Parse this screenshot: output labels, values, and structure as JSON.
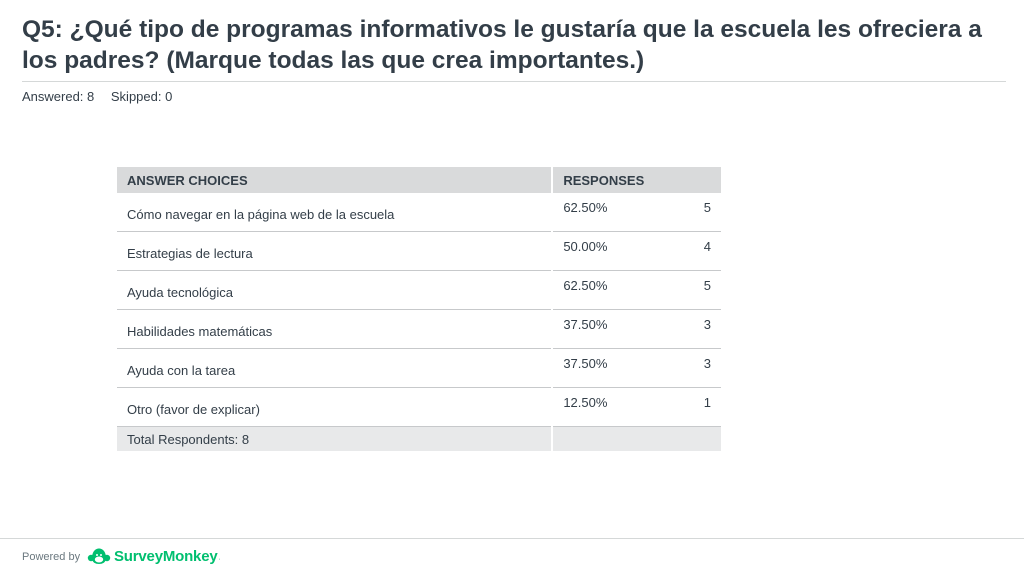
{
  "question": {
    "title": "Q5: ¿Qué tipo de programas informativos le gustaría que la escuela les ofreciera a los padres? (Marque todas las que crea importantes.)",
    "answered": "Answered: 8",
    "skipped": "Skipped: 0"
  },
  "table": {
    "headers": {
      "choices": "ANSWER CHOICES",
      "responses": "RESPONSES"
    },
    "rows": [
      {
        "label": "Cómo navegar en la página web de la escuela",
        "percent": "62.50%",
        "count": "5"
      },
      {
        "label": "Estrategias de lectura",
        "percent": "50.00%",
        "count": "4"
      },
      {
        "label": "Ayuda tecnológica",
        "percent": "62.50%",
        "count": "5"
      },
      {
        "label": "Habilidades matemáticas",
        "percent": "37.50%",
        "count": "3"
      },
      {
        "label": "Ayuda con la tarea",
        "percent": "37.50%",
        "count": "3"
      },
      {
        "label": "Otro (favor de explicar)",
        "percent": "12.50%",
        "count": "1"
      }
    ],
    "total": "Total Respondents: 8"
  },
  "footer": {
    "powered_by": "Powered by",
    "brand": "SurveyMonkey",
    "brand_mark": "·",
    "brand_color": "#00bf6f",
    "logo_icon": "surveymonkey-logo-icon"
  }
}
